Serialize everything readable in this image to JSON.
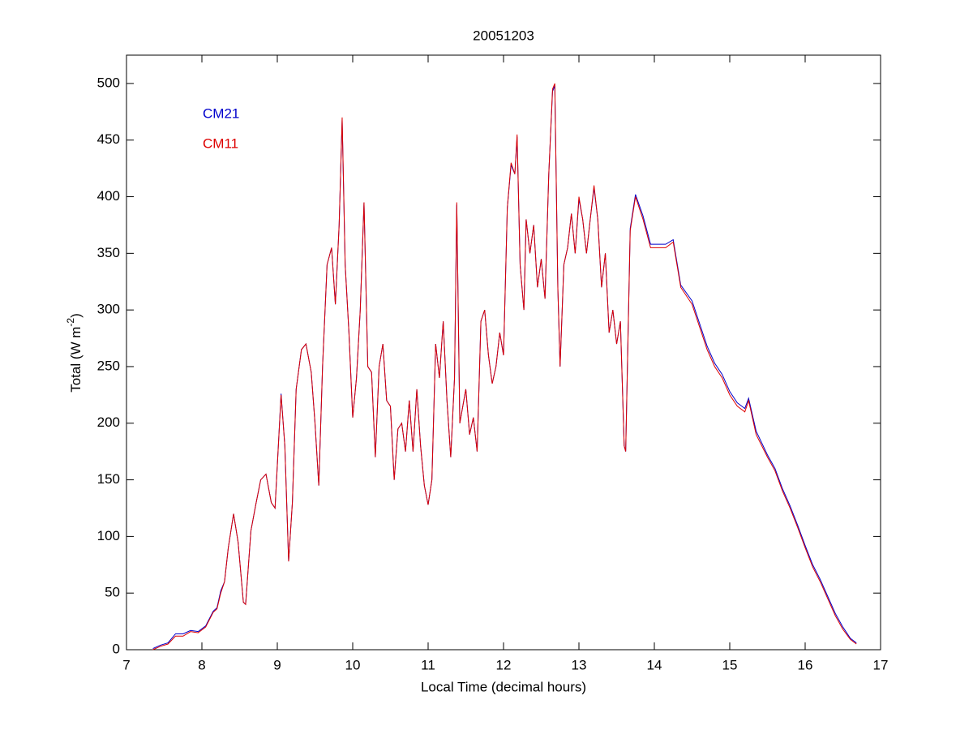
{
  "chart_data": {
    "type": "line",
    "title": "20051203",
    "xlabel": "Local Time (decimal hours)",
    "ylabel": [
      "Total (W m",
      "-2",
      ")"
    ],
    "xlim": [
      7,
      17
    ],
    "ylim": [
      0,
      525
    ],
    "xticks": [
      7,
      8,
      9,
      10,
      11,
      12,
      13,
      14,
      15,
      16,
      17
    ],
    "yticks": [
      0,
      50,
      100,
      150,
      200,
      250,
      300,
      350,
      400,
      450,
      500
    ],
    "legend": "upper left",
    "grid": false,
    "x": [
      7.35,
      7.45,
      7.55,
      7.65,
      7.75,
      7.85,
      7.95,
      8.05,
      8.15,
      8.2,
      8.25,
      8.3,
      8.35,
      8.42,
      8.48,
      8.55,
      8.58,
      8.65,
      8.72,
      8.78,
      8.85,
      8.92,
      8.97,
      9.05,
      9.1,
      9.15,
      9.2,
      9.25,
      9.32,
      9.38,
      9.45,
      9.5,
      9.55,
      9.6,
      9.66,
      9.72,
      9.77,
      9.82,
      9.86,
      9.9,
      9.95,
      10.0,
      10.05,
      10.1,
      10.15,
      10.2,
      10.25,
      10.3,
      10.35,
      10.4,
      10.45,
      10.5,
      10.55,
      10.6,
      10.65,
      10.7,
      10.75,
      10.8,
      10.85,
      10.9,
      10.95,
      11.0,
      11.05,
      11.1,
      11.15,
      11.2,
      11.25,
      11.3,
      11.35,
      11.38,
      11.42,
      11.5,
      11.55,
      11.6,
      11.65,
      11.7,
      11.75,
      11.8,
      11.85,
      11.9,
      11.95,
      12.0,
      12.05,
      12.1,
      12.15,
      12.18,
      12.22,
      12.27,
      12.3,
      12.35,
      12.4,
      12.45,
      12.5,
      12.55,
      12.6,
      12.65,
      12.68,
      12.72,
      12.75,
      12.8,
      12.85,
      12.9,
      12.95,
      13.0,
      13.05,
      13.1,
      13.15,
      13.2,
      13.25,
      13.3,
      13.35,
      13.4,
      13.45,
      13.5,
      13.55,
      13.6,
      13.62,
      13.68,
      13.75,
      13.85,
      13.95,
      14.05,
      14.15,
      14.25,
      14.35,
      14.5,
      14.6,
      14.7,
      14.8,
      14.9,
      15.0,
      15.1,
      15.2,
      15.25,
      15.35,
      15.5,
      15.6,
      15.7,
      15.8,
      15.9,
      16.0,
      16.1,
      16.2,
      16.3,
      16.4,
      16.5,
      16.6,
      16.68
    ],
    "series": [
      {
        "name": "CM21",
        "color": "#0000cc",
        "values": [
          1,
          4,
          6,
          14,
          14,
          17,
          16,
          21,
          34,
          37,
          52,
          60,
          90,
          120,
          95,
          42,
          40,
          105,
          130,
          150,
          155,
          130,
          125,
          226,
          180,
          78,
          130,
          230,
          265,
          270,
          245,
          200,
          145,
          250,
          340,
          355,
          305,
          375,
          468,
          340,
          280,
          205,
          240,
          300,
          395,
          250,
          245,
          170,
          250,
          270,
          220,
          215,
          150,
          195,
          200,
          175,
          220,
          175,
          230,
          180,
          145,
          128,
          150,
          270,
          240,
          290,
          220,
          170,
          240,
          393,
          200,
          230,
          190,
          205,
          175,
          290,
          300,
          260,
          235,
          250,
          280,
          260,
          390,
          428,
          420,
          453,
          340,
          300,
          380,
          350,
          375,
          320,
          345,
          310,
          420,
          493,
          498,
          320,
          250,
          340,
          355,
          385,
          350,
          398,
          380,
          350,
          380,
          408,
          380,
          320,
          350,
          280,
          300,
          270,
          290,
          180,
          175,
          372,
          402,
          383,
          358,
          358,
          358,
          362,
          322,
          308,
          288,
          268,
          253,
          243,
          228,
          218,
          213,
          222,
          193,
          172,
          160,
          142,
          127,
          110,
          92,
          75,
          62,
          47,
          32,
          20,
          10,
          6
        ]
      },
      {
        "name": "CM11",
        "color": "#dd0000",
        "values": [
          0,
          3,
          5,
          12,
          12,
          16,
          15,
          20,
          33,
          36,
          50,
          60,
          90,
          120,
          95,
          42,
          40,
          105,
          130,
          150,
          155,
          130,
          125,
          225,
          180,
          78,
          130,
          230,
          265,
          270,
          245,
          200,
          145,
          250,
          340,
          355,
          305,
          375,
          470,
          340,
          280,
          205,
          240,
          300,
          395,
          250,
          245,
          170,
          250,
          270,
          220,
          215,
          150,
          195,
          200,
          175,
          220,
          175,
          230,
          180,
          145,
          128,
          150,
          270,
          240,
          290,
          220,
          170,
          240,
          395,
          200,
          230,
          190,
          205,
          175,
          290,
          300,
          260,
          235,
          250,
          280,
          260,
          390,
          430,
          420,
          455,
          340,
          300,
          380,
          350,
          375,
          320,
          345,
          310,
          420,
          495,
          500,
          320,
          250,
          340,
          355,
          385,
          350,
          400,
          380,
          350,
          380,
          410,
          380,
          320,
          350,
          280,
          300,
          270,
          290,
          180,
          175,
          370,
          400,
          380,
          355,
          355,
          355,
          360,
          320,
          305,
          285,
          265,
          250,
          240,
          225,
          215,
          210,
          220,
          190,
          170,
          158,
          140,
          125,
          108,
          90,
          73,
          60,
          45,
          30,
          18,
          9,
          5
        ]
      }
    ]
  }
}
